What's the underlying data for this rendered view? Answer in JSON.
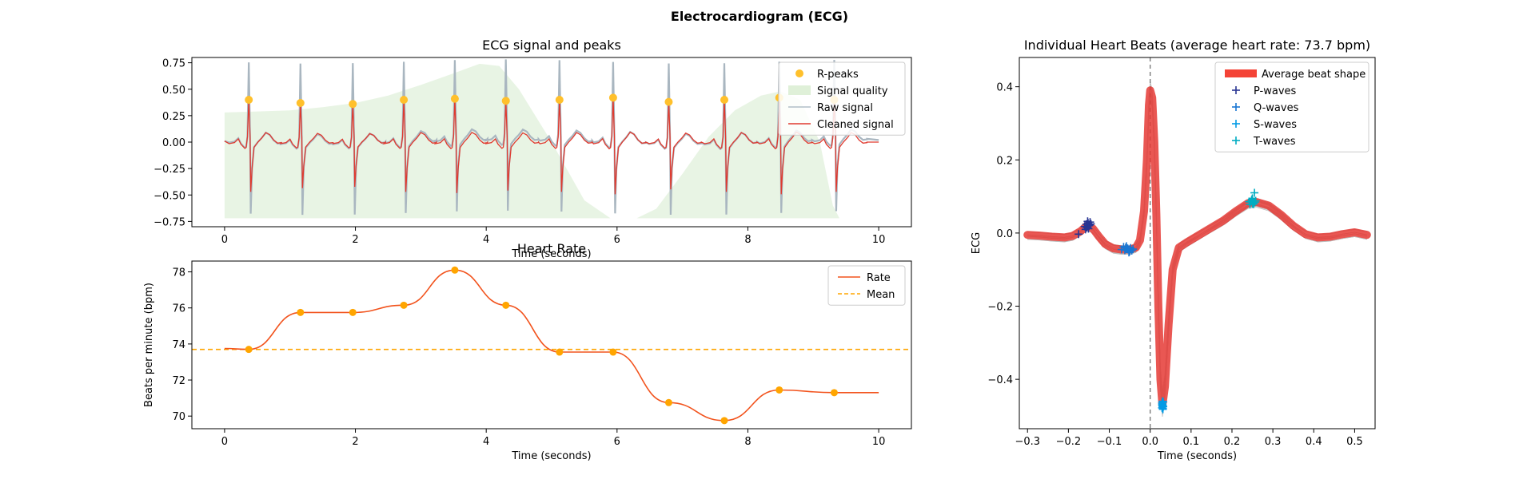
{
  "figure": {
    "suptitle": "Electrocardiogram (ECG)"
  },
  "chart_data": [
    {
      "id": "ecg-signal",
      "type": "line",
      "title": "ECG signal and peaks",
      "xlabel": "Time (seconds)",
      "ylabel": "",
      "xlim": [
        -0.5,
        10.5
      ],
      "ylim": [
        -0.8,
        0.8
      ],
      "xticks": [
        0,
        2,
        4,
        6,
        8,
        10
      ],
      "yticks": [
        -0.75,
        -0.5,
        -0.25,
        0.0,
        0.25,
        0.5,
        0.75
      ],
      "ytick_labels": [
        "−0.75",
        "−0.50",
        "−0.25",
        "0.00",
        "0.25",
        "0.50",
        "0.75"
      ],
      "grid": false,
      "legend_position": "top-right",
      "legend": [
        {
          "label": "R-peaks",
          "color": "#FFC02B",
          "kind": "marker"
        },
        {
          "label": "Signal quality",
          "color": "#DFF0D8",
          "kind": "patch"
        },
        {
          "label": "Raw signal",
          "color": "#B0BDC7",
          "kind": "line"
        },
        {
          "label": "Cleaned signal",
          "color": "#E03A2F",
          "kind": "line"
        }
      ],
      "r_peaks": [
        {
          "x": 0.37,
          "y": 0.4
        },
        {
          "x": 1.16,
          "y": 0.37
        },
        {
          "x": 1.96,
          "y": 0.36
        },
        {
          "x": 2.74,
          "y": 0.4
        },
        {
          "x": 3.52,
          "y": 0.41
        },
        {
          "x": 4.3,
          "y": 0.39
        },
        {
          "x": 5.12,
          "y": 0.4
        },
        {
          "x": 5.94,
          "y": 0.42
        },
        {
          "x": 6.79,
          "y": 0.38
        },
        {
          "x": 7.64,
          "y": 0.4
        },
        {
          "x": 8.48,
          "y": 0.42
        },
        {
          "x": 9.32,
          "y": 0.4
        }
      ],
      "signal_quality": {
        "baseline": -0.72,
        "points": [
          [
            0,
            0.28
          ],
          [
            0.5,
            0.29
          ],
          [
            1,
            0.3
          ],
          [
            1.5,
            0.33
          ],
          [
            2,
            0.37
          ],
          [
            2.5,
            0.44
          ],
          [
            3,
            0.54
          ],
          [
            3.5,
            0.65
          ],
          [
            3.9,
            0.74
          ],
          [
            4.2,
            0.72
          ],
          [
            4.5,
            0.5
          ],
          [
            5,
            0.0
          ],
          [
            5.5,
            -0.55
          ],
          [
            5.9,
            -0.72
          ],
          [
            6.3,
            -0.72
          ],
          [
            6.6,
            -0.63
          ],
          [
            7,
            -0.3
          ],
          [
            7.4,
            0.05
          ],
          [
            7.8,
            0.3
          ],
          [
            8.2,
            0.44
          ],
          [
            8.5,
            0.48
          ],
          [
            8.8,
            0.4
          ],
          [
            9.1,
            0.0
          ],
          [
            9.3,
            -0.6
          ],
          [
            9.4,
            -0.72
          ],
          [
            10,
            -0.72
          ]
        ]
      },
      "beat_template": [
        [
          -0.3,
          -0.015
        ],
        [
          -0.22,
          -0.005
        ],
        [
          -0.16,
          0.03
        ],
        [
          -0.12,
          -0.02
        ],
        [
          -0.06,
          -0.06
        ],
        [
          -0.04,
          -0.05
        ],
        [
          -0.02,
          0.05
        ],
        [
          0.0,
          0.4
        ],
        [
          0.02,
          0.05
        ],
        [
          0.03,
          -0.47
        ],
        [
          0.05,
          -0.25
        ],
        [
          0.08,
          -0.05
        ],
        [
          0.14,
          0.0
        ],
        [
          0.2,
          0.04
        ],
        [
          0.26,
          0.09
        ],
        [
          0.32,
          0.07
        ],
        [
          0.38,
          0.02
        ],
        [
          0.44,
          -0.01
        ],
        [
          0.5,
          -0.005
        ],
        [
          0.5,
          0.0
        ]
      ],
      "raw_extra_spike": {
        "up": 0.75,
        "down": -0.68
      }
    },
    {
      "id": "heart-rate",
      "type": "line",
      "title": "Heart Rate",
      "xlabel": "Time (seconds)",
      "ylabel": "Beats per minute (bpm)",
      "xlim": [
        -0.5,
        10.5
      ],
      "ylim": [
        69.3,
        78.6
      ],
      "xticks": [
        0,
        2,
        4,
        6,
        8,
        10
      ],
      "yticks": [
        70,
        72,
        74,
        76,
        78
      ],
      "grid": false,
      "legend_position": "top-right",
      "legend": [
        {
          "label": "Rate",
          "color": "#F2531D",
          "kind": "line"
        },
        {
          "label": "Mean",
          "color": "#FFA500",
          "kind": "dashed"
        }
      ],
      "mean": 73.7,
      "rate_points": [
        {
          "x": 0.0,
          "y": 73.75
        },
        {
          "x": 0.37,
          "y": 73.7
        },
        {
          "x": 1.16,
          "y": 75.75
        },
        {
          "x": 1.96,
          "y": 75.75
        },
        {
          "x": 2.74,
          "y": 76.15
        },
        {
          "x": 3.52,
          "y": 78.1
        },
        {
          "x": 4.3,
          "y": 76.15
        },
        {
          "x": 5.12,
          "y": 73.55
        },
        {
          "x": 5.94,
          "y": 73.55
        },
        {
          "x": 6.79,
          "y": 70.75
        },
        {
          "x": 7.64,
          "y": 69.75
        },
        {
          "x": 8.48,
          "y": 71.45
        },
        {
          "x": 9.32,
          "y": 71.3
        },
        {
          "x": 10.0,
          "y": 71.3
        }
      ]
    },
    {
      "id": "heart-beats",
      "type": "line",
      "title": "Individual Heart Beats (average heart rate: 73.7 bpm)",
      "xlabel": "Time (seconds)",
      "ylabel": "ECG",
      "xlim": [
        -0.32,
        0.55
      ],
      "ylim": [
        -0.535,
        0.48
      ],
      "xticks": [
        -0.3,
        -0.2,
        -0.1,
        0.0,
        0.1,
        0.2,
        0.3,
        0.4,
        0.5
      ],
      "xtick_labels": [
        "−0.3",
        "−0.2",
        "−0.1",
        "0.0",
        "0.1",
        "0.2",
        "0.3",
        "0.4",
        "0.5"
      ],
      "yticks": [
        -0.4,
        -0.2,
        0.0,
        0.2,
        0.4
      ],
      "ytick_labels": [
        "−0.4",
        "−0.2",
        "0.0",
        "0.2",
        "0.4"
      ],
      "grid": false,
      "legend_position": "top-right",
      "legend": [
        {
          "label": "Average beat shape",
          "color": "#F44336",
          "kind": "thick"
        },
        {
          "label": "P-waves",
          "color": "#283593",
          "kind": "plus"
        },
        {
          "label": "Q-waves",
          "color": "#1976D2",
          "kind": "plus"
        },
        {
          "label": "S-waves",
          "color": "#039BE5",
          "kind": "plus"
        },
        {
          "label": "T-waves",
          "color": "#00ACC1",
          "kind": "plus"
        }
      ],
      "average_beat": [
        [
          -0.3,
          -0.005
        ],
        [
          -0.27,
          -0.007
        ],
        [
          -0.24,
          -0.01
        ],
        [
          -0.21,
          -0.012
        ],
        [
          -0.19,
          -0.008
        ],
        [
          -0.17,
          0.005
        ],
        [
          -0.155,
          0.02
        ],
        [
          -0.14,
          0.012
        ],
        [
          -0.125,
          -0.01
        ],
        [
          -0.11,
          -0.03
        ],
        [
          -0.09,
          -0.042
        ],
        [
          -0.07,
          -0.045
        ],
        [
          -0.05,
          -0.045
        ],
        [
          -0.035,
          -0.04
        ],
        [
          -0.025,
          -0.02
        ],
        [
          -0.015,
          0.06
        ],
        [
          -0.008,
          0.2
        ],
        [
          -0.003,
          0.35
        ],
        [
          0.0,
          0.39
        ],
        [
          0.005,
          0.37
        ],
        [
          0.01,
          0.25
        ],
        [
          0.015,
          0.05
        ],
        [
          0.02,
          -0.2
        ],
        [
          0.025,
          -0.4
        ],
        [
          0.03,
          -0.47
        ],
        [
          0.036,
          -0.42
        ],
        [
          0.045,
          -0.25
        ],
        [
          0.055,
          -0.1
        ],
        [
          0.07,
          -0.04
        ],
        [
          0.09,
          -0.025
        ],
        [
          0.12,
          -0.005
        ],
        [
          0.15,
          0.015
        ],
        [
          0.18,
          0.035
        ],
        [
          0.21,
          0.06
        ],
        [
          0.24,
          0.082
        ],
        [
          0.26,
          0.085
        ],
        [
          0.29,
          0.075
        ],
        [
          0.32,
          0.05
        ],
        [
          0.35,
          0.02
        ],
        [
          0.38,
          -0.003
        ],
        [
          0.41,
          -0.012
        ],
        [
          0.44,
          -0.01
        ],
        [
          0.47,
          -0.003
        ],
        [
          0.5,
          0.002
        ],
        [
          0.53,
          -0.005
        ]
      ],
      "p_waves": [
        [
          -0.15,
          0.02
        ],
        [
          -0.155,
          0.015
        ],
        [
          -0.152,
          0.028
        ],
        [
          -0.148,
          0.022
        ],
        [
          -0.158,
          0.01
        ],
        [
          -0.145,
          0.025
        ],
        [
          -0.153,
          0.032
        ],
        [
          -0.16,
          0.018
        ],
        [
          -0.147,
          0.03
        ],
        [
          -0.156,
          0.024
        ],
        [
          -0.151,
          0.012
        ],
        [
          -0.175,
          -0.003
        ]
      ],
      "q_waves": [
        [
          -0.07,
          -0.045
        ],
        [
          -0.06,
          -0.04
        ],
        [
          -0.05,
          -0.05
        ],
        [
          -0.055,
          -0.042
        ],
        [
          -0.045,
          -0.048
        ],
        [
          -0.065,
          -0.038
        ],
        [
          -0.052,
          -0.053
        ],
        [
          -0.042,
          -0.044
        ],
        [
          -0.058,
          -0.036
        ],
        [
          -0.048,
          -0.041
        ],
        [
          -0.062,
          -0.047
        ],
        [
          -0.054,
          -0.045
        ]
      ],
      "s_waves": [
        [
          0.03,
          -0.47
        ],
        [
          0.031,
          -0.48
        ],
        [
          0.029,
          -0.465
        ],
        [
          0.032,
          -0.475
        ],
        [
          0.03,
          -0.46
        ],
        [
          0.031,
          -0.472
        ],
        [
          0.029,
          -0.478
        ],
        [
          0.03,
          -0.468
        ],
        [
          0.032,
          -0.462
        ],
        [
          0.031,
          -0.482
        ],
        [
          0.03,
          -0.474
        ],
        [
          0.029,
          -0.47
        ]
      ],
      "t_waves": [
        [
          0.245,
          0.085
        ],
        [
          0.25,
          0.08
        ],
        [
          0.255,
          0.11
        ],
        [
          0.248,
          0.09
        ],
        [
          0.252,
          0.082
        ],
        [
          0.258,
          0.088
        ],
        [
          0.244,
          0.078
        ],
        [
          0.25,
          0.095
        ],
        [
          0.256,
          0.084
        ],
        [
          0.242,
          0.086
        ],
        [
          0.253,
          0.079
        ],
        [
          0.249,
          0.092
        ]
      ]
    }
  ]
}
